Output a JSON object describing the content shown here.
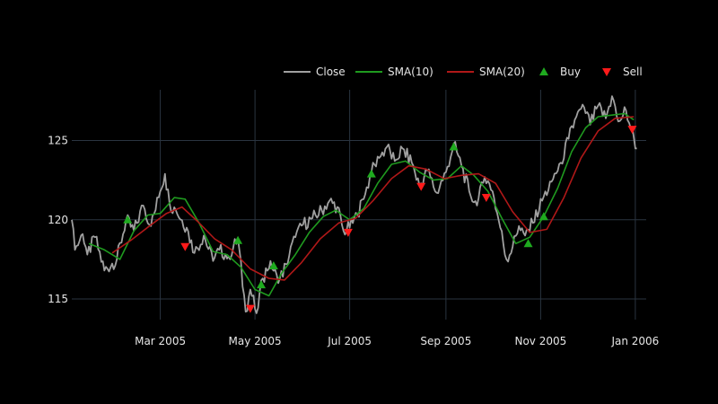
{
  "chart_data": {
    "type": "line",
    "title": "",
    "xlabel": "",
    "ylabel": "",
    "x_ticks": [
      "Mar 2005",
      "May 2005",
      "Jul 2005",
      "Sep 2005",
      "Nov 2005",
      "Jan 2006"
    ],
    "x_tick_dates": [
      "2005-03-01",
      "2005-05-01",
      "2005-07-01",
      "2005-09-01",
      "2005-11-01",
      "2006-01-01"
    ],
    "y_ticks": [
      "115",
      "120",
      "125"
    ],
    "y_tick_values": [
      115,
      120,
      125
    ],
    "xlim": [
      "2005-01-03",
      "2006-01-08"
    ],
    "ylim": [
      113.7,
      128.2
    ],
    "grid": true,
    "legend_position": "top-right",
    "colors": {
      "background": "#000000",
      "grid": "#2a3440",
      "close": "#a0a0a0",
      "sma10": "#1f9a1f",
      "sma20": "#b01818",
      "buy": "#1faa1f",
      "sell": "#ff1a1a",
      "text": "#e6e6e6"
    },
    "close_anchors": [
      [
        "2005-01-03",
        120.0
      ],
      [
        "2005-01-05",
        118.1
      ],
      [
        "2005-01-10",
        119.1
      ],
      [
        "2005-01-13",
        117.8
      ],
      [
        "2005-01-18",
        118.9
      ],
      [
        "2005-01-24",
        116.8
      ],
      [
        "2005-02-01",
        117.5
      ],
      [
        "2005-02-07",
        120.0
      ],
      [
        "2005-02-12",
        119.3
      ],
      [
        "2005-02-18",
        120.9
      ],
      [
        "2005-02-23",
        119.6
      ],
      [
        "2005-03-01",
        121.8
      ],
      [
        "2005-03-04",
        122.9
      ],
      [
        "2005-03-07",
        121.0
      ],
      [
        "2005-03-11",
        120.6
      ],
      [
        "2005-03-18",
        119.5
      ],
      [
        "2005-03-23",
        117.9
      ],
      [
        "2005-03-29",
        119.0
      ],
      [
        "2005-04-04",
        117.4
      ],
      [
        "2005-04-08",
        118.1
      ],
      [
        "2005-04-14",
        117.7
      ],
      [
        "2005-04-20",
        118.8
      ],
      [
        "2005-04-25",
        114.2
      ],
      [
        "2005-04-28",
        115.6
      ],
      [
        "2005-05-02",
        114.1
      ],
      [
        "2005-05-06",
        116.3
      ],
      [
        "2005-05-11",
        117.4
      ],
      [
        "2005-05-16",
        116.0
      ],
      [
        "2005-05-21",
        117.2
      ],
      [
        "2005-05-27",
        118.9
      ],
      [
        "2005-06-01",
        119.7
      ],
      [
        "2005-06-07",
        120.1
      ],
      [
        "2005-06-13",
        120.6
      ],
      [
        "2005-06-18",
        121.2
      ],
      [
        "2005-06-23",
        120.8
      ],
      [
        "2005-06-27",
        119.3
      ],
      [
        "2005-07-01",
        119.5
      ],
      [
        "2005-07-06",
        120.3
      ],
      [
        "2005-07-11",
        121.6
      ],
      [
        "2005-07-15",
        123.0
      ],
      [
        "2005-07-20",
        123.9
      ],
      [
        "2005-07-25",
        124.6
      ],
      [
        "2005-07-30",
        123.7
      ],
      [
        "2005-08-04",
        124.5
      ],
      [
        "2005-08-10",
        123.6
      ],
      [
        "2005-08-15",
        122.1
      ],
      [
        "2005-08-20",
        123.1
      ],
      [
        "2005-08-26",
        121.7
      ],
      [
        "2005-09-01",
        123.0
      ],
      [
        "2005-09-06",
        124.8
      ],
      [
        "2005-09-11",
        123.4
      ],
      [
        "2005-09-16",
        121.8
      ],
      [
        "2005-09-21",
        120.9
      ],
      [
        "2005-09-26",
        122.7
      ],
      [
        "2005-10-01",
        121.8
      ],
      [
        "2005-10-06",
        119.5
      ],
      [
        "2005-10-10",
        117.5
      ],
      [
        "2005-10-14",
        118.3
      ],
      [
        "2005-10-18",
        119.6
      ],
      [
        "2005-10-22",
        119.0
      ],
      [
        "2005-10-27",
        119.8
      ],
      [
        "2005-11-02",
        121.2
      ],
      [
        "2005-11-08",
        122.4
      ],
      [
        "2005-11-14",
        123.6
      ],
      [
        "2005-11-19",
        125.1
      ],
      [
        "2005-11-24",
        126.5
      ],
      [
        "2005-11-29",
        127.1
      ],
      [
        "2005-12-03",
        126.0
      ],
      [
        "2005-12-08",
        127.2
      ],
      [
        "2005-12-13",
        126.4
      ],
      [
        "2005-12-17",
        127.8
      ],
      [
        "2005-12-21",
        126.2
      ],
      [
        "2005-12-26",
        126.9
      ],
      [
        "2005-12-31",
        125.2
      ],
      [
        "2006-01-02",
        124.5
      ]
    ],
    "series": [
      {
        "name": "SMA(10)",
        "points": [
          [
            "2005-01-14",
            118.5
          ],
          [
            "2005-01-24",
            118.1
          ],
          [
            "2005-02-03",
            117.5
          ],
          [
            "2005-02-12",
            119.3
          ],
          [
            "2005-02-21",
            120.3
          ],
          [
            "2005-03-01",
            120.4
          ],
          [
            "2005-03-10",
            121.4
          ],
          [
            "2005-03-17",
            121.3
          ],
          [
            "2005-03-26",
            119.8
          ],
          [
            "2005-04-04",
            118.0
          ],
          [
            "2005-04-13",
            117.8
          ],
          [
            "2005-04-22",
            117.0
          ],
          [
            "2005-05-01",
            115.6
          ],
          [
            "2005-05-10",
            115.2
          ],
          [
            "2005-05-18",
            116.6
          ],
          [
            "2005-05-27",
            117.8
          ],
          [
            "2005-06-05",
            119.2
          ],
          [
            "2005-06-14",
            120.2
          ],
          [
            "2005-06-22",
            120.6
          ],
          [
            "2005-07-01",
            120.0
          ],
          [
            "2005-07-10",
            120.7
          ],
          [
            "2005-07-19",
            122.3
          ],
          [
            "2005-07-28",
            123.5
          ],
          [
            "2005-08-06",
            123.7
          ],
          [
            "2005-08-15",
            123.0
          ],
          [
            "2005-08-24",
            122.5
          ],
          [
            "2005-09-02",
            122.6
          ],
          [
            "2005-09-11",
            123.4
          ],
          [
            "2005-09-19",
            122.8
          ],
          [
            "2005-09-28",
            121.8
          ],
          [
            "2005-10-07",
            120.1
          ],
          [
            "2005-10-16",
            118.5
          ],
          [
            "2005-10-25",
            118.9
          ],
          [
            "2005-11-03",
            120.2
          ],
          [
            "2005-11-12",
            122.0
          ],
          [
            "2005-11-21",
            124.3
          ],
          [
            "2005-11-30",
            125.8
          ],
          [
            "2005-12-08",
            126.5
          ],
          [
            "2005-12-17",
            126.6
          ],
          [
            "2005-12-25",
            126.7
          ],
          [
            "2005-12-31",
            126.3
          ]
        ]
      },
      {
        "name": "SMA(20)",
        "points": [
          [
            "2005-01-29",
            117.9
          ],
          [
            "2005-02-10",
            118.7
          ],
          [
            "2005-02-22",
            119.6
          ],
          [
            "2005-03-05",
            120.4
          ],
          [
            "2005-03-15",
            120.8
          ],
          [
            "2005-03-25",
            119.9
          ],
          [
            "2005-04-05",
            118.8
          ],
          [
            "2005-04-16",
            118.1
          ],
          [
            "2005-04-28",
            116.9
          ],
          [
            "2005-05-10",
            116.3
          ],
          [
            "2005-05-20",
            116.2
          ],
          [
            "2005-05-31",
            117.3
          ],
          [
            "2005-06-12",
            118.8
          ],
          [
            "2005-06-24",
            119.8
          ],
          [
            "2005-07-05",
            120.1
          ],
          [
            "2005-07-16",
            121.2
          ],
          [
            "2005-07-28",
            122.6
          ],
          [
            "2005-08-08",
            123.4
          ],
          [
            "2005-08-19",
            123.2
          ],
          [
            "2005-08-31",
            122.6
          ],
          [
            "2005-09-11",
            122.8
          ],
          [
            "2005-09-22",
            122.9
          ],
          [
            "2005-10-03",
            122.3
          ],
          [
            "2005-10-14",
            120.5
          ],
          [
            "2005-10-25",
            119.2
          ],
          [
            "2005-11-05",
            119.4
          ],
          [
            "2005-11-16",
            121.4
          ],
          [
            "2005-11-27",
            123.9
          ],
          [
            "2005-12-08",
            125.6
          ],
          [
            "2005-12-19",
            126.4
          ],
          [
            "2005-12-31",
            126.5
          ]
        ]
      }
    ],
    "buy_signals": [
      [
        "2005-02-08",
        120.0
      ],
      [
        "2005-04-20",
        118.7
      ],
      [
        "2005-05-05",
        115.9
      ],
      [
        "2005-05-13",
        117.1
      ],
      [
        "2005-07-15",
        122.9
      ],
      [
        "2005-09-06",
        124.6
      ],
      [
        "2005-10-24",
        118.5
      ],
      [
        "2005-11-03",
        120.2
      ]
    ],
    "sell_signals": [
      [
        "2005-03-17",
        118.3
      ],
      [
        "2005-04-28",
        114.4
      ],
      [
        "2005-06-30",
        119.2
      ],
      [
        "2005-08-16",
        122.1
      ],
      [
        "2005-09-27",
        121.4
      ],
      [
        "2005-12-30",
        125.7
      ]
    ],
    "legend": [
      "Close",
      "SMA(10)",
      "SMA(20)",
      "Buy",
      "Sell"
    ]
  }
}
